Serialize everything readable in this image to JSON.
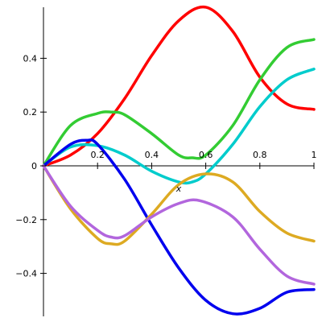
{
  "chart_data": {
    "type": "line",
    "title": "",
    "xlabel": "x",
    "ylabel": "",
    "xlim": [
      0,
      1
    ],
    "ylim": [
      -0.56,
      0.59
    ],
    "grid": false,
    "x_ticks": [
      {
        "value": 0.2,
        "label": "0.2"
      },
      {
        "value": 0.4,
        "label": "0.4"
      },
      {
        "value": 0.6,
        "label": "0.6"
      },
      {
        "value": 0.8,
        "label": "0.8"
      },
      {
        "value": 1.0,
        "label": "1"
      }
    ],
    "y_ticks": [
      {
        "value": 0.4,
        "label": "0.4"
      },
      {
        "value": 0.2,
        "label": "0.2"
      },
      {
        "value": 0.0,
        "label": "0"
      },
      {
        "value": -0.2,
        "label": "−0.2"
      },
      {
        "value": -0.4,
        "label": "−0.4"
      }
    ],
    "series": [
      {
        "color": "#ff0000",
        "x": [
          0,
          0.1,
          0.2,
          0.3,
          0.4,
          0.5,
          0.6,
          0.7,
          0.8,
          0.9,
          1.0
        ],
        "values": [
          0,
          0.04,
          0.12,
          0.25,
          0.41,
          0.54,
          0.59,
          0.5,
          0.33,
          0.23,
          0.21
        ]
      },
      {
        "color": "#33cc33",
        "x": [
          0,
          0.1,
          0.2,
          0.25,
          0.3,
          0.4,
          0.5,
          0.55,
          0.6,
          0.7,
          0.8,
          0.9,
          1.0
        ],
        "values": [
          0,
          0.15,
          0.195,
          0.2,
          0.19,
          0.12,
          0.04,
          0.03,
          0.04,
          0.15,
          0.32,
          0.44,
          0.47
        ]
      },
      {
        "color": "#00cccc",
        "x": [
          0,
          0.1,
          0.2,
          0.3,
          0.4,
          0.5,
          0.55,
          0.6,
          0.7,
          0.8,
          0.9,
          1.0
        ],
        "values": [
          0,
          0.07,
          0.075,
          0.04,
          -0.02,
          -0.06,
          -0.06,
          -0.03,
          0.08,
          0.22,
          0.32,
          0.36
        ]
      },
      {
        "color": "#0000ee",
        "x": [
          0,
          0.1,
          0.16,
          0.2,
          0.3,
          0.4,
          0.5,
          0.6,
          0.7,
          0.8,
          0.9,
          1.0
        ],
        "values": [
          0,
          0.08,
          0.095,
          0.08,
          -0.05,
          -0.22,
          -0.38,
          -0.5,
          -0.55,
          -0.53,
          -0.47,
          -0.46
        ]
      },
      {
        "color": "#ddaa22",
        "x": [
          0,
          0.1,
          0.2,
          0.25,
          0.3,
          0.4,
          0.5,
          0.6,
          0.7,
          0.8,
          0.9,
          1.0
        ],
        "values": [
          0,
          -0.16,
          -0.27,
          -0.29,
          -0.28,
          -0.18,
          -0.07,
          -0.03,
          -0.06,
          -0.17,
          -0.25,
          -0.28
        ]
      },
      {
        "color": "#b266dd",
        "x": [
          0,
          0.1,
          0.2,
          0.25,
          0.3,
          0.4,
          0.5,
          0.58,
          0.7,
          0.8,
          0.9,
          1.0
        ],
        "values": [
          0,
          -0.15,
          -0.24,
          -0.265,
          -0.26,
          -0.19,
          -0.14,
          -0.13,
          -0.19,
          -0.31,
          -0.41,
          -0.44
        ]
      }
    ]
  }
}
